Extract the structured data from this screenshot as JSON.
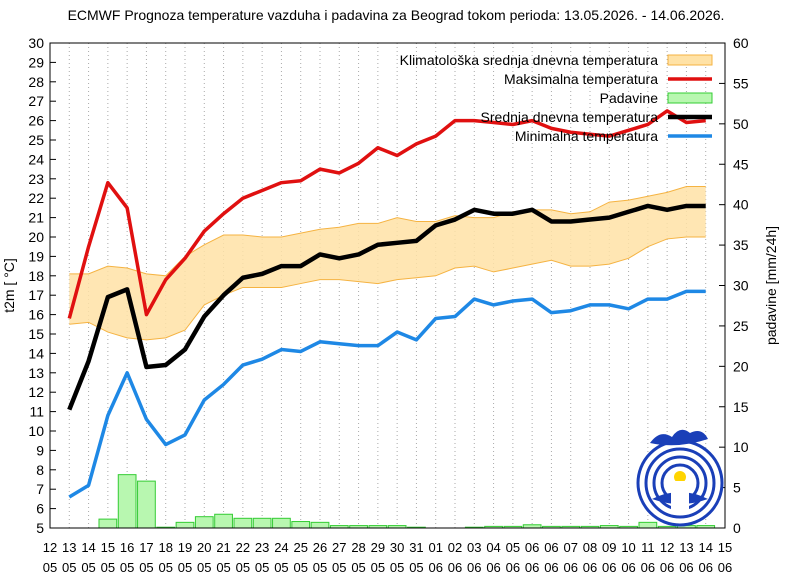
{
  "chart_data": {
    "type": "line",
    "title": "ECMWF Prognoza temperature vazduha i padavina za Beograd tokom perioda: 13.05.2026. - 14.06.2026.",
    "ylabel": "t2m [ °C]",
    "y2label": "padavine [mm/24h]",
    "ylim": [
      5,
      30
    ],
    "y2lim": [
      0,
      60
    ],
    "yticks": [
      "5",
      "6",
      "7",
      "8",
      "9",
      "10",
      "11",
      "12",
      "13",
      "14",
      "15",
      "16",
      "17",
      "18",
      "19",
      "20",
      "21",
      "22",
      "23",
      "24",
      "25",
      "26",
      "27",
      "28",
      "29",
      "30"
    ],
    "y2ticks": [
      "0",
      "5",
      "10",
      "15",
      "20",
      "25",
      "30",
      "35",
      "40",
      "45",
      "50",
      "55",
      "60"
    ],
    "x_days": [
      "12",
      "13",
      "14",
      "15",
      "16",
      "17",
      "18",
      "19",
      "20",
      "21",
      "22",
      "23",
      "24",
      "25",
      "26",
      "27",
      "28",
      "29",
      "30",
      "31",
      "01",
      "02",
      "03",
      "04",
      "05",
      "06",
      "06",
      "07",
      "08",
      "09",
      "10",
      "11",
      "12",
      "13",
      "14",
      "15"
    ],
    "x_months": [
      "05",
      "05",
      "05",
      "05",
      "05",
      "05",
      "05",
      "05",
      "05",
      "05",
      "05",
      "05",
      "05",
      "05",
      "05",
      "05",
      "05",
      "05",
      "05",
      "05",
      "06",
      "06",
      "06",
      "06",
      "06",
      "06",
      "06",
      "06",
      "06",
      "06",
      "06",
      "06",
      "06",
      "06",
      "06",
      "06"
    ],
    "legend": [
      {
        "name": "Klimatološka srednja dnevna temperatura",
        "color": "#ffe2a6",
        "edge": "#f5b342",
        "style": "band"
      },
      {
        "name": "Maksimalna temperatura",
        "color": "#e01010",
        "style": "line"
      },
      {
        "name": "Padavine",
        "color": "#b8f7b0",
        "edge": "#33cc33",
        "style": "bar"
      },
      {
        "name": "Srednja dnevna temperatura",
        "color": "#000000",
        "style": "line"
      },
      {
        "name": "Minimalna temperatura",
        "color": "#1e88e5",
        "style": "line"
      }
    ],
    "x_index": [
      1,
      2,
      3,
      4,
      5,
      6,
      7,
      8,
      9,
      10,
      11,
      12,
      13,
      14,
      15,
      16,
      17,
      18,
      19,
      20,
      21,
      22,
      23,
      24,
      25,
      26,
      27,
      28,
      29,
      30,
      31,
      32,
      33,
      34
    ],
    "series": [
      {
        "name": "Maksimalna temperatura",
        "color": "#e01010",
        "values": [
          15.8,
          19.5,
          22.8,
          21.5,
          16.0,
          17.8,
          18.9,
          20.3,
          21.2,
          22.0,
          22.4,
          22.8,
          22.9,
          23.5,
          23.3,
          23.8,
          24.6,
          24.2,
          24.8,
          25.2,
          26.0,
          26.0,
          25.9,
          25.8,
          26.0,
          25.6,
          25.4,
          25.3,
          25.2,
          25.5,
          25.8,
          26.5,
          25.9,
          26.0
        ]
      },
      {
        "name": "Srednja dnevna temperatura",
        "color": "#000000",
        "values": [
          11.1,
          13.6,
          16.9,
          17.3,
          13.3,
          13.4,
          14.2,
          15.9,
          17.0,
          17.9,
          18.1,
          18.5,
          18.5,
          19.1,
          18.9,
          19.1,
          19.6,
          19.7,
          19.8,
          20.6,
          20.9,
          21.4,
          21.2,
          21.2,
          21.4,
          20.8,
          20.8,
          20.9,
          21.0,
          21.3,
          21.6,
          21.4,
          21.6,
          21.6
        ]
      },
      {
        "name": "Minimalna temperatura",
        "color": "#1e88e5",
        "values": [
          6.6,
          7.2,
          10.8,
          13.0,
          10.6,
          9.3,
          9.8,
          11.6,
          12.4,
          13.4,
          13.7,
          14.2,
          14.1,
          14.6,
          14.5,
          14.4,
          14.4,
          15.1,
          14.7,
          15.8,
          15.9,
          16.8,
          16.5,
          16.7,
          16.8,
          16.1,
          16.2,
          16.5,
          16.5,
          16.3,
          16.8,
          16.8,
          17.2,
          17.2
        ]
      }
    ],
    "climatology_band": {
      "name": "Klimatološka srednja dnevna temperatura",
      "upper": [
        18.1,
        18.1,
        18.5,
        18.4,
        18.1,
        18.0,
        19.0,
        19.6,
        20.1,
        20.1,
        20.0,
        20.0,
        20.2,
        20.4,
        20.5,
        20.7,
        20.7,
        21.0,
        20.8,
        20.8,
        21.1,
        21.0,
        21.0,
        21.3,
        21.4,
        21.4,
        21.2,
        21.3,
        21.8,
        21.9,
        22.1,
        22.3,
        22.6,
        22.6
      ],
      "lower": [
        15.5,
        15.6,
        15.1,
        14.8,
        14.7,
        14.8,
        15.2,
        16.5,
        17.0,
        17.4,
        17.4,
        17.4,
        17.6,
        17.8,
        17.8,
        17.7,
        17.6,
        17.8,
        17.9,
        18.0,
        18.4,
        18.5,
        18.2,
        18.4,
        18.6,
        18.8,
        18.5,
        18.5,
        18.6,
        18.9,
        19.5,
        19.9,
        20.0,
        20.0
      ]
    },
    "precipitation": {
      "name": "Padavine",
      "values": [
        0.0,
        0.0,
        1.1,
        6.6,
        5.8,
        0.1,
        0.7,
        1.4,
        1.7,
        1.2,
        1.2,
        1.2,
        0.8,
        0.7,
        0.3,
        0.3,
        0.3,
        0.3,
        0.1,
        0.0,
        0.0,
        0.1,
        0.2,
        0.2,
        0.4,
        0.2,
        0.2,
        0.2,
        0.3,
        0.2,
        0.7,
        0.2,
        0.3,
        0.3
      ]
    },
    "grid": "vertical dotted",
    "legend_position": "top-right"
  }
}
